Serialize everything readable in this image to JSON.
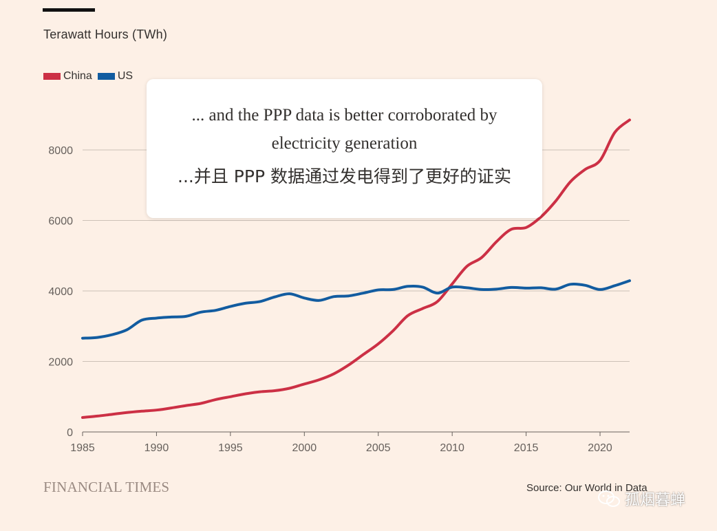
{
  "y_axis_title": "Terawatt Hours (TWh)",
  "legend": [
    {
      "label": "China",
      "color": "#cc3045"
    },
    {
      "label": "US",
      "color": "#125ca0"
    }
  ],
  "callout": {
    "english": "... and the PPP data is better corroborated by electricity generation",
    "chinese": "...并且 PPP 数据通过发电得到了更好的证实"
  },
  "footer": {
    "logo": "FINANCIAL TIMES",
    "source": "Source: Our World in Data",
    "watermark": "孤烟暮蝉"
  },
  "chart_data": {
    "type": "line",
    "title": "",
    "xlabel": "",
    "ylabel": "Terawatt Hours (TWh)",
    "xlim": [
      1985,
      2022
    ],
    "ylim": [
      0,
      8000
    ],
    "y_ticks": [
      0,
      2000,
      4000,
      6000,
      8000
    ],
    "x_ticks": [
      1985,
      1990,
      1995,
      2000,
      2005,
      2010,
      2015,
      2020
    ],
    "grid": true,
    "x": [
      1985,
      1986,
      1987,
      1988,
      1989,
      1990,
      1991,
      1992,
      1993,
      1994,
      1995,
      1996,
      1997,
      1998,
      1999,
      2000,
      2001,
      2002,
      2003,
      2004,
      2005,
      2006,
      2007,
      2008,
      2009,
      2010,
      2011,
      2012,
      2013,
      2014,
      2015,
      2016,
      2017,
      2018,
      2019,
      2020,
      2021,
      2022
    ],
    "series": [
      {
        "name": "China",
        "color": "#cc3045",
        "values": [
          410,
          450,
          500,
          550,
          590,
          620,
          680,
          750,
          810,
          920,
          1000,
          1080,
          1140,
          1170,
          1240,
          1360,
          1480,
          1650,
          1900,
          2200,
          2500,
          2870,
          3300,
          3500,
          3700,
          4200,
          4700,
          4950,
          5400,
          5750,
          5800,
          6100,
          6550,
          7100,
          7450,
          7700,
          8500,
          8850
        ]
      },
      {
        "name": "US",
        "color": "#125ca0",
        "values": [
          2660,
          2680,
          2760,
          2900,
          3170,
          3230,
          3260,
          3280,
          3400,
          3450,
          3560,
          3650,
          3700,
          3830,
          3920,
          3800,
          3730,
          3840,
          3860,
          3940,
          4030,
          4040,
          4130,
          4110,
          3940,
          4110,
          4090,
          4040,
          4050,
          4100,
          4080,
          4090,
          4050,
          4190,
          4160,
          4040,
          4150,
          4290
        ]
      }
    ]
  }
}
